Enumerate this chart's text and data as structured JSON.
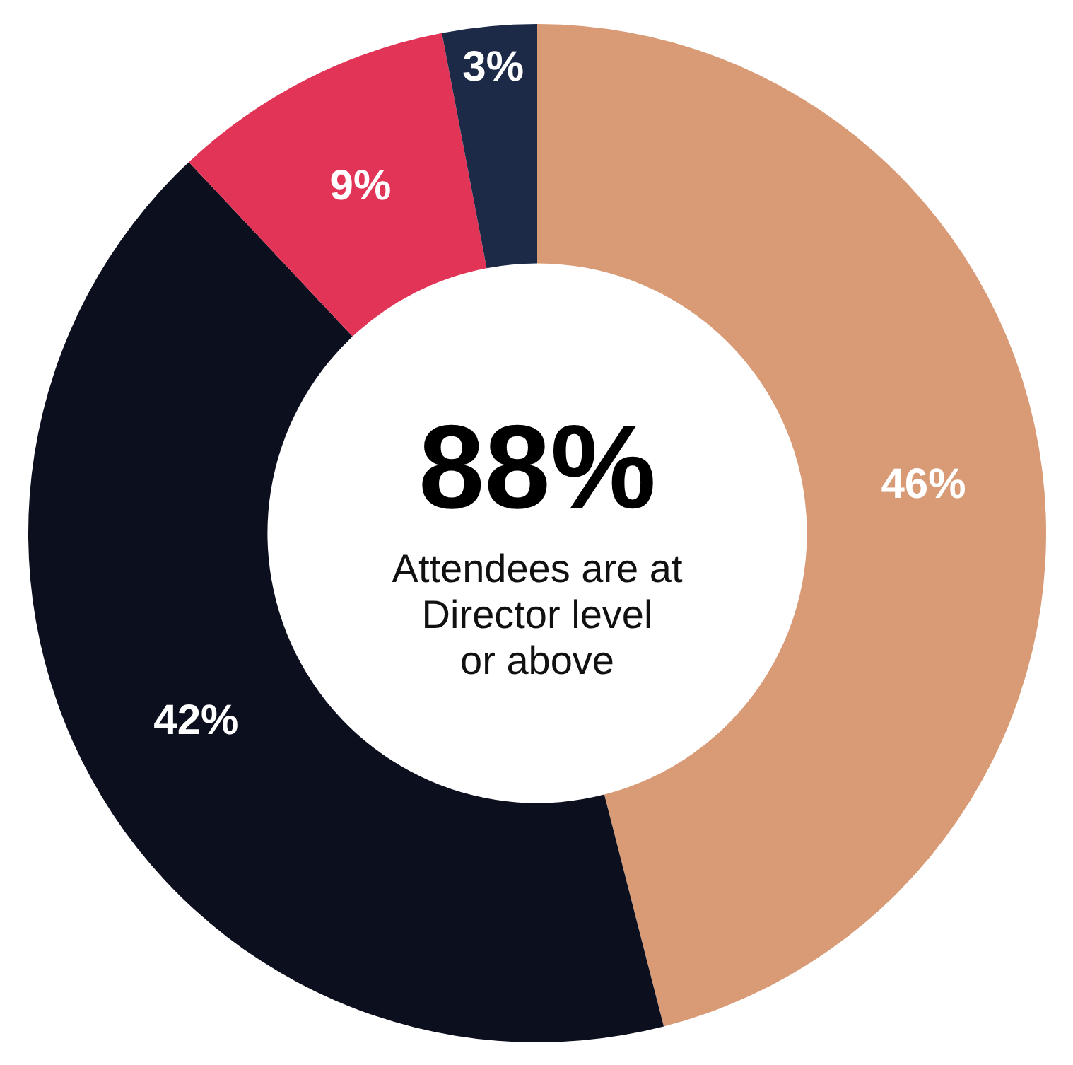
{
  "chart_data": {
    "type": "donut",
    "categories": [
      null,
      null,
      null,
      null
    ],
    "values": [
      46,
      42,
      9,
      3
    ],
    "colors": [
      "#d99a76",
      "#0b0f1e",
      "#e23456",
      "#1c2a48"
    ],
    "value_labels": [
      "46%",
      "42%",
      "9%",
      "3%"
    ],
    "annotations": [
      "88%",
      "Attendees are at Director level or above"
    ]
  }
}
